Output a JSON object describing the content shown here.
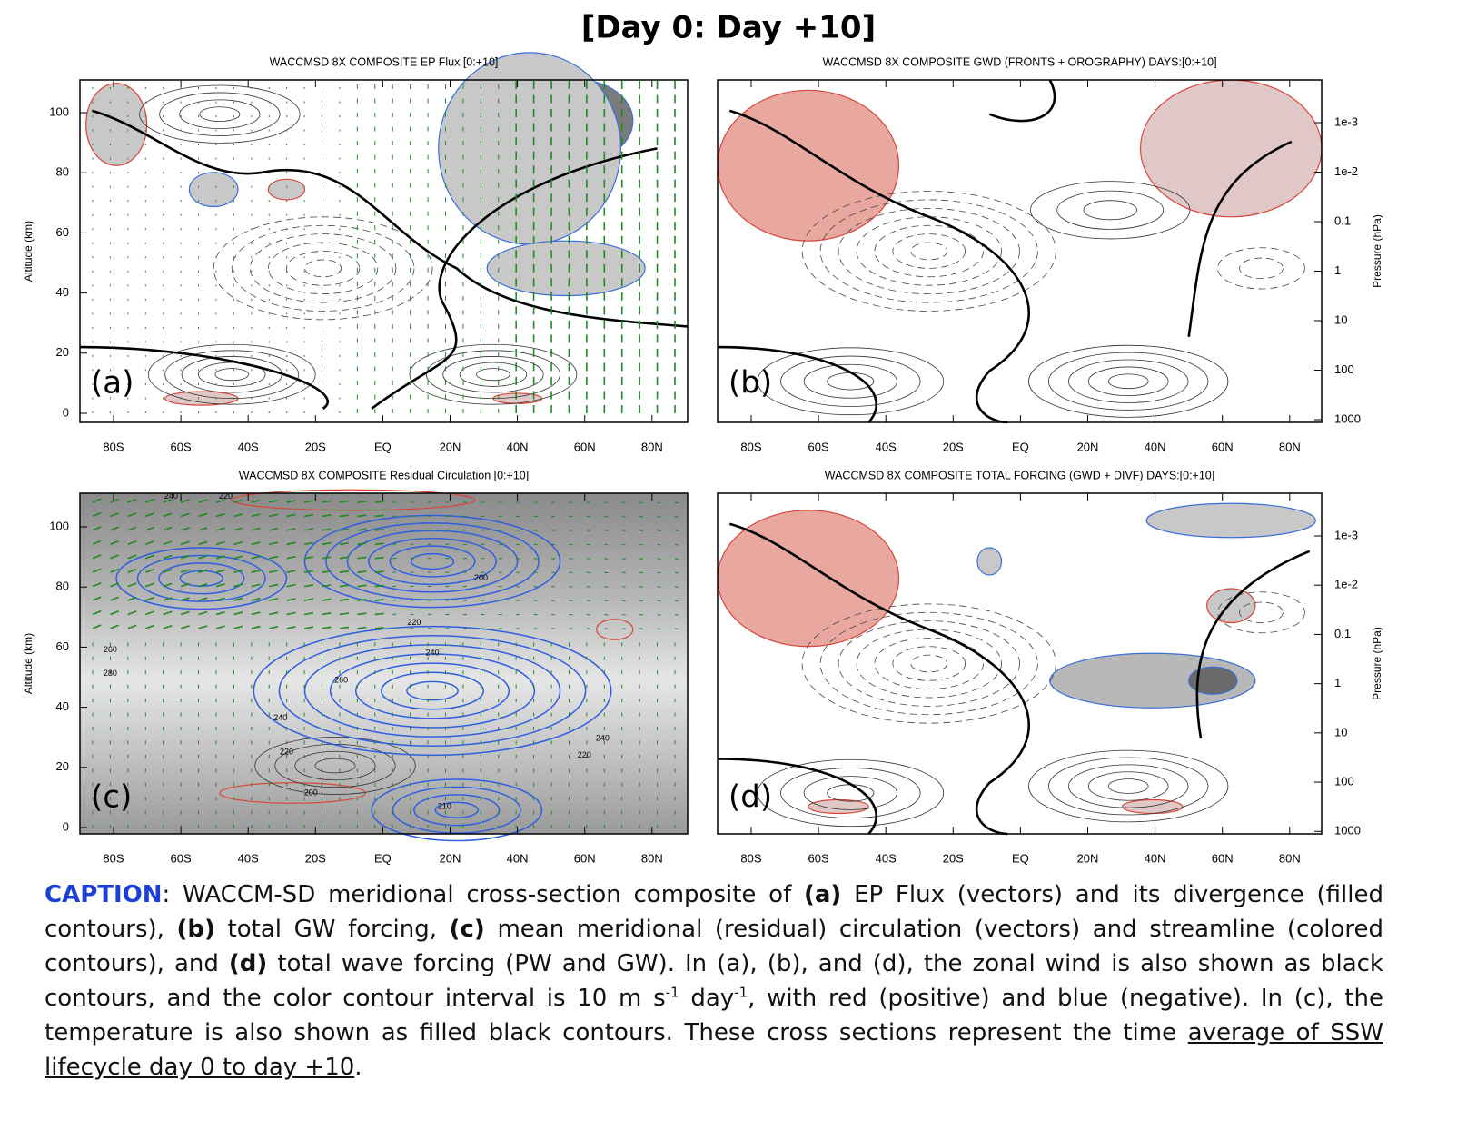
{
  "title": "[Day 0: Day +10]",
  "x_ticks": [
    "80S",
    "60S",
    "40S",
    "20S",
    "EQ",
    "20N",
    "40N",
    "60N",
    "80N"
  ],
  "altitude_ticks": [
    0,
    20,
    40,
    60,
    80,
    100
  ],
  "pressure_ticks": [
    {
      "value": 0.001,
      "label": "1e-3"
    },
    {
      "value": 0.01,
      "label": "1e-2"
    },
    {
      "value": 0.1,
      "label": "0.1"
    },
    {
      "value": 1,
      "label": "1"
    },
    {
      "value": 10,
      "label": "10"
    },
    {
      "value": 100,
      "label": "100"
    },
    {
      "value": 1000,
      "label": "1000"
    }
  ],
  "panels": [
    {
      "title": "WACCMSD 8X COMPOSITE EP Flux [0:+10]",
      "label": "(a)",
      "y_axis_label": "Altitude (km)"
    },
    {
      "title": "WACCMSD 8X COMPOSITE GWD (FRONTS + OROGRAPHY) DAYS:[0:+10]",
      "label": "(b)",
      "y2_axis_label": "Pressure (hPa)"
    },
    {
      "title": "WACCMSD 8X COMPOSITE Residual Circulation [0:+10]",
      "label": "(c)",
      "y_axis_label": "Altitude (km)",
      "contour_labels": [
        "240",
        "220",
        "200",
        "220",
        "240",
        "260",
        "240",
        "220",
        "200",
        "220",
        "240",
        "260",
        "280",
        "210"
      ]
    },
    {
      "title": "WACCMSD 8X COMPOSITE TOTAL FORCING (GWD + DIVF) DAYS:[0:+10]",
      "label": "(d)",
      "y2_axis_label": "Pressure (hPa)"
    }
  ],
  "caption": {
    "segments": [
      "CAPTION",
      ": WACCM-SD meridional cross-section composite of ",
      "(a)",
      " EP Flux (vectors) and its divergence (filled contours), ",
      "(b)",
      " total GW forcing, ",
      "(c)",
      " mean meridional (residual) circulation (vectors) and streamline (colored contours), and ",
      "(d)",
      " total wave forcing (PW and GW). In (a), (b), and (d), the zonal wind is also shown as black contours, and the color contour interval is 10 m s",
      "-1",
      " day",
      "-1",
      ", with red (positive) and blue (negative). In (c), the temperature is also shown as filled black contours. These cross sections represent the time ",
      "average of SSW lifecycle day 0 to day +10",
      "."
    ]
  }
}
